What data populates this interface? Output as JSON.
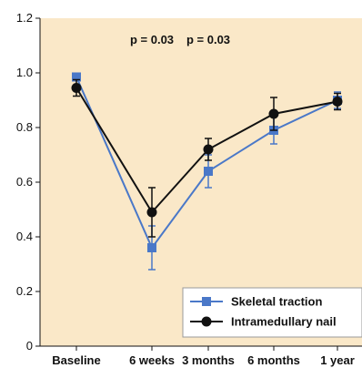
{
  "chart_data": {
    "type": "line",
    "categories": [
      "Baseline",
      "6 weeks",
      "3 months",
      "6 months",
      "1 year"
    ],
    "ylim": [
      0,
      1.2
    ],
    "yticks": [
      "0",
      "0.2",
      "0.4",
      "0.6",
      "0.8",
      "1.0",
      "1.2"
    ],
    "grid": false,
    "legend_position": "bottom-right",
    "background_color": "#fae8c8",
    "series": [
      {
        "name": "Skeletal traction",
        "color": "#4a78c8",
        "marker": "square",
        "values": [
          0.985,
          0.36,
          0.64,
          0.79,
          0.9
        ],
        "err": [
          0.01,
          0.08,
          0.06,
          0.05,
          0.03
        ]
      },
      {
        "name": "Intramedullary nail",
        "color": "#111111",
        "marker": "circle",
        "values": [
          0.945,
          0.49,
          0.72,
          0.85,
          0.895
        ],
        "err": [
          0.03,
          0.09,
          0.04,
          0.06,
          0.03
        ]
      }
    ],
    "annotations": [
      {
        "text": "p = 0.03",
        "category_index": 1,
        "y": 1.12
      },
      {
        "text": "p = 0.03",
        "category_index": 2,
        "y": 1.12
      }
    ]
  }
}
